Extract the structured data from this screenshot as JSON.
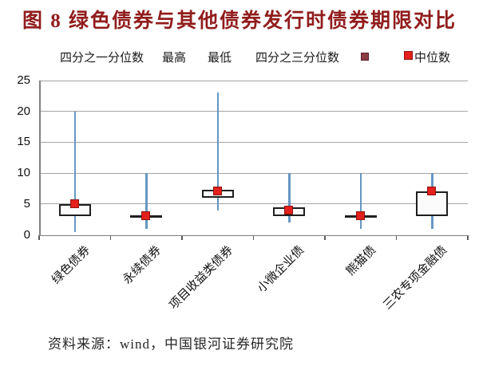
{
  "title": "图 8 绿色债券与其他债券发行时债券期限对比",
  "source_note": "资料来源：wind，中国银河证券研究院",
  "colors": {
    "title": "#911d1d",
    "whisker_line": "#6697c2",
    "box_border": "#1f1f1f",
    "box_fill": "#fbfbfb",
    "median_square": "#e3201b",
    "median_square_border": "#8f1111",
    "q3_legend_square": "#8c3a44",
    "gridline": "#a3a3a3",
    "axis": "#7f7f7f"
  },
  "legend": {
    "items": [
      {
        "label": "四分之一分位数",
        "marker": "none"
      },
      {
        "label": "最高",
        "marker": "none"
      },
      {
        "label": "最低",
        "marker": "none"
      },
      {
        "label": "四分之三分位数",
        "marker": "dark-red-square"
      },
      {
        "label": "中位数",
        "marker": "red-square"
      }
    ]
  },
  "chart_data": {
    "type": "boxplot",
    "title": "图 8 绿色债券与其他债券发行时债券期限对比",
    "categories": [
      "绿色债券",
      "永续债券",
      "项目收益类债券",
      "小微企业债",
      "熊猫债",
      "三农专项金融债"
    ],
    "series_legend": [
      "四分之一分位数",
      "最高",
      "最低",
      "四分之三分位数",
      "中位数"
    ],
    "values": [
      {
        "category": "绿色债券",
        "min": 0.5,
        "q1": 3,
        "median": 5,
        "q3": 5,
        "max": 20
      },
      {
        "category": "永续债券",
        "min": 1,
        "q1": 3,
        "median": 3,
        "q3": 3,
        "max": 10
      },
      {
        "category": "项目收益类债券",
        "min": 4,
        "q1": 6,
        "median": 7,
        "q3": 7.3,
        "max": 23
      },
      {
        "category": "小微企业债",
        "min": 2,
        "q1": 3,
        "median": 4,
        "q3": 4.4,
        "max": 10
      },
      {
        "category": "熊猫债",
        "min": 1,
        "q1": 3,
        "median": 3,
        "q3": 3,
        "max": 10
      },
      {
        "category": "三农专项金融债",
        "min": 1,
        "q1": 3,
        "median": 7,
        "q3": 7,
        "max": 10
      }
    ],
    "y_axis": {
      "min": 0,
      "max": 25,
      "tick_step": 5,
      "ticks": [
        0,
        5,
        10,
        15,
        20,
        25
      ]
    },
    "grid": true,
    "legend_position": "top",
    "ylabel": "",
    "xlabel": ""
  }
}
